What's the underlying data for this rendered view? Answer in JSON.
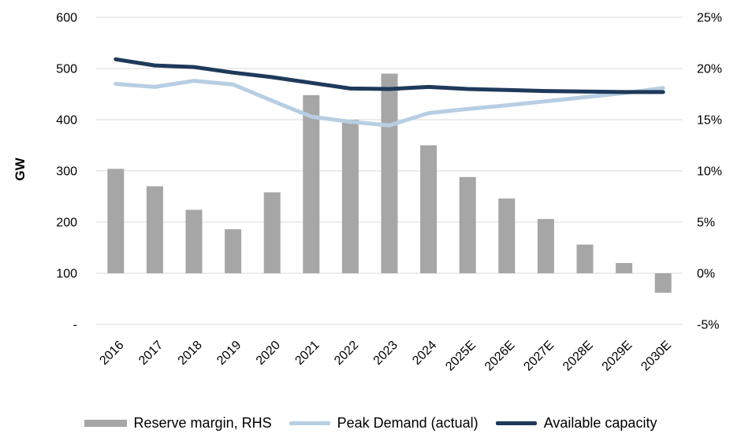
{
  "page": {
    "background": "#ffffff",
    "text_color": "#000000",
    "grid_color": "#d9d9d9"
  },
  "chart_data": {
    "type": "bar",
    "subtype": "combo-bar-line",
    "title": "",
    "categories": [
      "2016",
      "2017",
      "2018",
      "2019",
      "2020",
      "2021",
      "2022",
      "2023",
      "2024",
      "2025E",
      "2026E",
      "2027E",
      "2028E",
      "2029E",
      "2030E"
    ],
    "left_axis": {
      "title": "GW",
      "min": 0,
      "max": 600,
      "tick_labels": [
        "600",
        "500",
        "400",
        "300",
        "200",
        "100",
        "-"
      ]
    },
    "right_axis": {
      "min": -5,
      "max": 25,
      "tick_labels": [
        "25%",
        "20%",
        "15%",
        "10%",
        "5%",
        "0%",
        "-5%"
      ]
    },
    "grid": "horizontal",
    "legend_position": "bottom",
    "series": [
      {
        "name": "Reserve margin, RHS",
        "type": "bar",
        "axis": "right",
        "unit": "%",
        "color": "#a6a6a6",
        "values": [
          10.2,
          8.5,
          6.2,
          4.3,
          7.9,
          17.4,
          15.0,
          19.5,
          12.5,
          9.4,
          7.3,
          5.3,
          2.8,
          1.0,
          -1.9
        ]
      },
      {
        "name": "Peak Demand (actual)",
        "type": "line",
        "axis": "left",
        "unit": "GW",
        "color": "#b7cee3",
        "values": [
          470,
          464,
          476,
          469,
          437,
          406,
          396,
          389,
          413,
          421,
          428,
          436,
          444,
          452,
          462
        ]
      },
      {
        "name": "Available capacity",
        "type": "line",
        "axis": "left",
        "unit": "GW",
        "color": "#1e3a5a",
        "values": [
          518,
          506,
          503,
          492,
          483,
          472,
          461,
          460,
          464,
          460,
          458,
          456,
          455,
          454,
          454
        ]
      }
    ]
  }
}
